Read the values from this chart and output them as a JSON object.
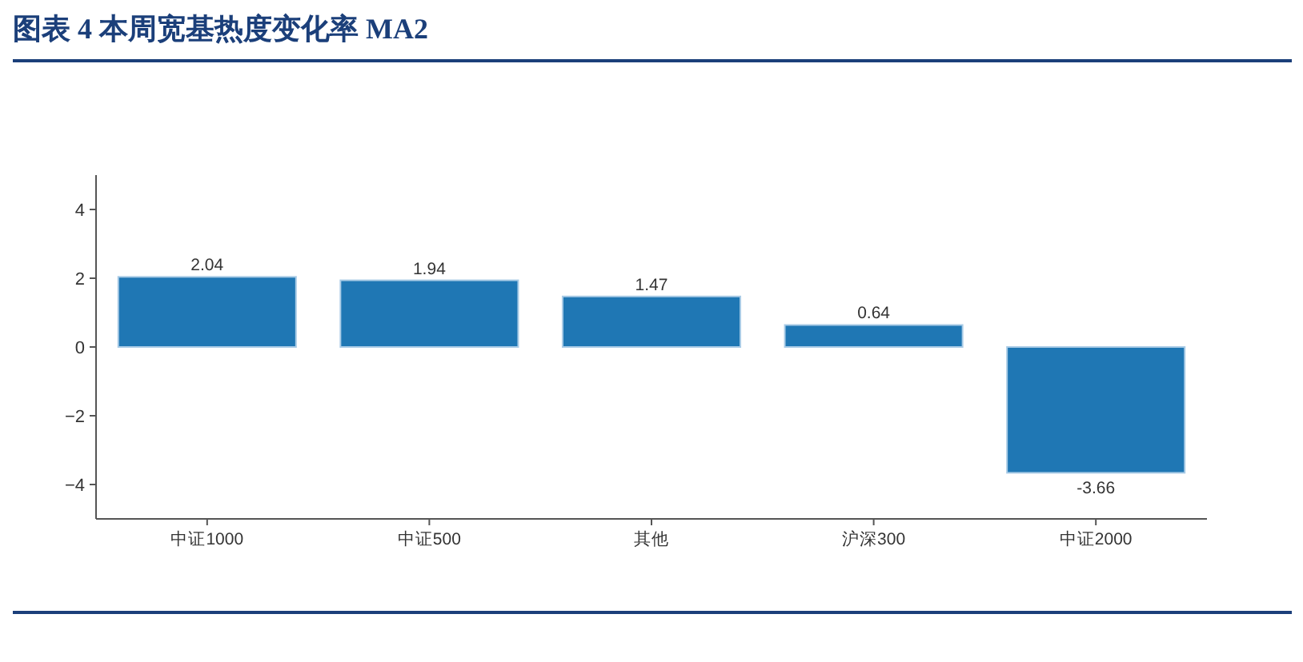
{
  "chart_data": {
    "type": "bar",
    "title": "图表 4 本周宽基热度变化率 MA2",
    "categories": [
      "中证1000",
      "中证500",
      "其他",
      "沪深300",
      "中证2000"
    ],
    "values": [
      2.04,
      1.94,
      1.47,
      0.64,
      -3.66
    ],
    "color": "#1f77b4",
    "ylim": [
      -5,
      5
    ],
    "yticks": [
      -4,
      -2,
      0,
      2,
      4
    ],
    "data_labels": true
  }
}
